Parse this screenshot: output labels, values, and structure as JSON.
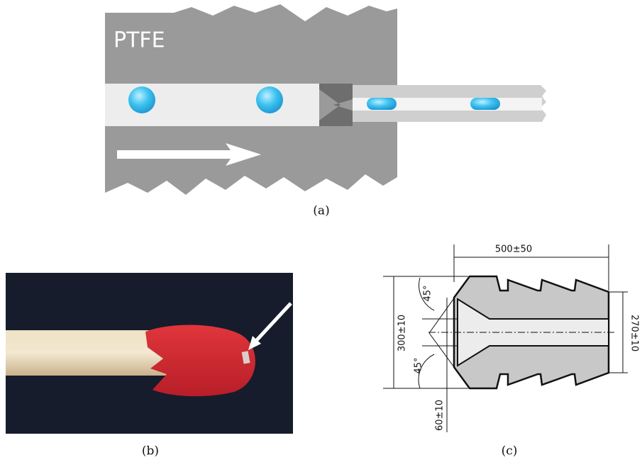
{
  "panels": [
    {
      "caption": "(a)",
      "material_label": "PTFE"
    },
    {
      "caption": "(b)"
    },
    {
      "caption": "(c)",
      "dimensions": [
        "500±50",
        "45°",
        "45°",
        "300±10",
        "270±10",
        "60±10"
      ]
    }
  ]
}
